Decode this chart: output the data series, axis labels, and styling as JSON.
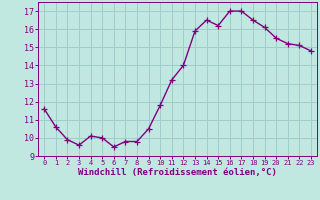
{
  "x": [
    0,
    1,
    2,
    3,
    4,
    5,
    6,
    7,
    8,
    9,
    10,
    11,
    12,
    13,
    14,
    15,
    16,
    17,
    18,
    19,
    20,
    21,
    22,
    23
  ],
  "y": [
    11.6,
    10.6,
    9.9,
    9.6,
    10.1,
    10.0,
    9.5,
    9.8,
    9.8,
    10.5,
    11.8,
    13.2,
    14.0,
    15.9,
    16.5,
    16.2,
    17.0,
    17.0,
    16.5,
    16.1,
    15.5,
    15.2,
    15.1,
    14.8
  ],
  "line_color": "#800080",
  "marker": "+",
  "bg_color": "#c0e8e0",
  "grid_color": "#a0cccc",
  "xlabel": "Windchill (Refroidissement éolien,°C)",
  "ylim": [
    9,
    17.5
  ],
  "xlim": [
    -0.5,
    23.5
  ],
  "yticks": [
    9,
    10,
    11,
    12,
    13,
    14,
    15,
    16,
    17
  ],
  "xticks": [
    0,
    1,
    2,
    3,
    4,
    5,
    6,
    7,
    8,
    9,
    10,
    11,
    12,
    13,
    14,
    15,
    16,
    17,
    18,
    19,
    20,
    21,
    22,
    23
  ],
  "tick_color": "#800080",
  "label_color": "#800080",
  "linewidth": 1.0,
  "markersize": 4,
  "xtick_fontsize": 5.0,
  "ytick_fontsize": 6.0,
  "xlabel_fontsize": 6.5
}
